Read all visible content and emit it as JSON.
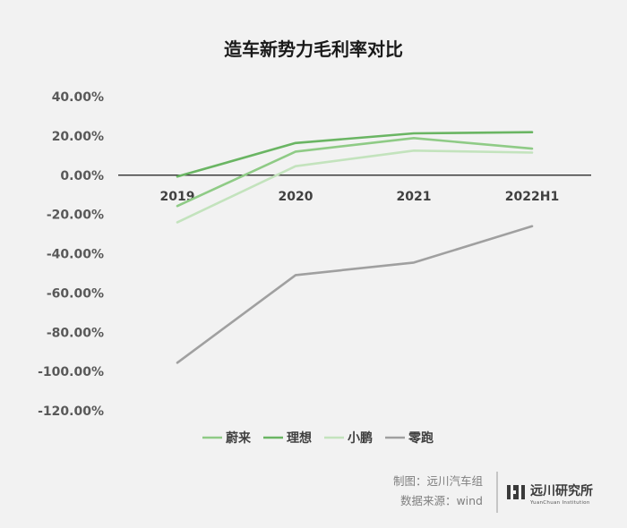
{
  "chart_data": {
    "type": "line",
    "title": "造车新势力毛利率对比",
    "categories": [
      "2019",
      "2020",
      "2021",
      "2022H1"
    ],
    "y_ticks": [
      "40.00%",
      "20.00%",
      "0.00%",
      "-20.00%",
      "-40.00%",
      "-60.00%",
      "-80.00%",
      "-100.00%",
      "-120.00%"
    ],
    "ylim": [
      -120,
      40
    ],
    "y_unit": "%",
    "grid": false,
    "legend_position": "bottom",
    "series": [
      {
        "name": "蔚来",
        "color": "#8fcb86",
        "values": [
          -15.7,
          12.0,
          18.9,
          13.5
        ]
      },
      {
        "name": "理想",
        "color": "#6ab563",
        "values": [
          -0.7,
          16.4,
          21.3,
          21.9
        ]
      },
      {
        "name": "小鹏",
        "color": "#c3e3bd",
        "values": [
          -24.0,
          4.6,
          12.5,
          11.5
        ]
      },
      {
        "name": "零跑",
        "color": "#a0a0a0",
        "values": [
          -95.5,
          -50.9,
          -44.5,
          -26.0
        ]
      }
    ]
  },
  "footer": {
    "credit_line1": "制图：远川汽车组",
    "credit_line2": "数据来源：wind",
    "logo_name": "远川研究所",
    "logo_sub": "YuanChuan Institution"
  }
}
